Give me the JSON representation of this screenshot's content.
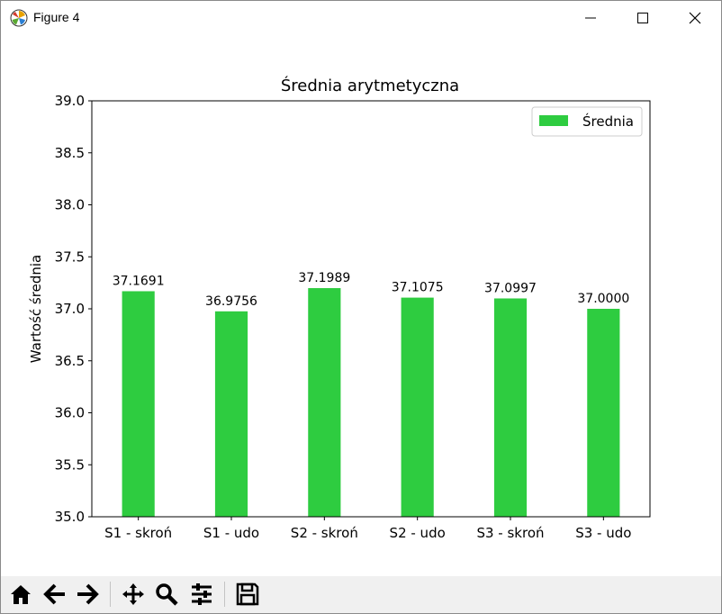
{
  "window": {
    "title": "Figure 4"
  },
  "icons": {
    "app": "matplotlib-icon",
    "minimize": "minimize-icon",
    "maximize": "maximize-icon",
    "close": "close-icon"
  },
  "toolbar": {
    "buttons": [
      {
        "name": "home-icon"
      },
      {
        "name": "back-arrow-icon"
      },
      {
        "name": "forward-arrow-icon"
      },
      {
        "name": "pan-icon"
      },
      {
        "name": "zoom-icon"
      },
      {
        "name": "configure-subplots-icon"
      },
      {
        "name": "save-icon"
      }
    ]
  },
  "chart_data": {
    "type": "bar",
    "title": "Średnia arytmetyczna",
    "xlabel": "",
    "ylabel": "Wartość średnia",
    "categories": [
      "S1 - skroń",
      "S1 - udo",
      "S2 - skroń",
      "S2 - udo",
      "S3 - skroń",
      "S3 - udo"
    ],
    "series": [
      {
        "name": "Średnia",
        "color": "#2ecc40",
        "values": [
          37.1691,
          36.9756,
          37.1989,
          37.1075,
          37.0997,
          37.0
        ]
      }
    ],
    "data_labels": [
      "37.1691",
      "36.9756",
      "37.1989",
      "37.1075",
      "37.0997",
      "37.0000"
    ],
    "ylim": [
      35.0,
      39.0
    ],
    "yticks": [
      "35.0",
      "35.5",
      "36.0",
      "36.5",
      "37.0",
      "37.5",
      "38.0",
      "38.5",
      "39.0"
    ],
    "legend_position": "top-right",
    "grid": false
  }
}
